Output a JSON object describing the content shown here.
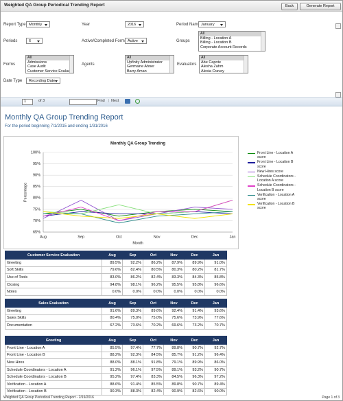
{
  "header": {
    "title": "Weighted QA Group Periodical Trending Report",
    "buttons": [
      "Back",
      "Generate Report"
    ]
  },
  "form": {
    "fields": [
      {
        "label": "Report Type",
        "value": "Monthly"
      },
      {
        "label": "Year",
        "value": "2016"
      },
      {
        "label": "Period Name",
        "value": "January"
      },
      {
        "label": "Periods",
        "value": "6"
      },
      {
        "label": "Active/Completed Forms",
        "value": "Active"
      },
      {
        "label": "Date Type",
        "value": "Recording Date"
      }
    ],
    "lists": [
      {
        "label": "Groups",
        "options": [
          "All",
          "Billing - Location A",
          "Billing - Location B",
          "Corporate Account Records"
        ]
      },
      {
        "label": "Forms",
        "options": [
          "All",
          "Admissions",
          "Case Audit",
          "Customer Service Evaluation"
        ]
      },
      {
        "label": "Agents",
        "options": [
          "All",
          "Upfinity Administrator",
          "Germaine Ahner",
          "Barry Aman"
        ]
      },
      {
        "label": "Evaluators",
        "options": [
          "All",
          "Abe Capote",
          "Alesha Zahm",
          "Alesia Cravey"
        ]
      }
    ]
  },
  "toolbar": {
    "page": "1",
    "of": "of 3",
    "find": "Find",
    "next": "Next"
  },
  "report": {
    "title": "Monthly QA Group Trending Report",
    "subtitle": "For the period beginning 7/1/2015 and ending 1/31/2016"
  },
  "chart_data": {
    "type": "line",
    "title": "Monthly QA Group Trending",
    "x_label": "Month",
    "y_label": "Percentage",
    "categories": [
      "Aug",
      "Sep",
      "Oct",
      "Nov",
      "Dec",
      "Jan"
    ],
    "ylim": [
      65,
      100
    ],
    "yticks": [
      {
        "value": 65,
        "label": "65%"
      },
      {
        "value": 70,
        "label": "70%"
      },
      {
        "value": 75,
        "label": "75%"
      },
      {
        "value": 80,
        "label": "80%"
      },
      {
        "value": 85,
        "label": "85%"
      },
      {
        "value": 90,
        "label": "90%"
      },
      {
        "value": 95,
        "label": "95%"
      },
      {
        "value": 100,
        "label": "100%"
      }
    ],
    "grid": true,
    "series": [
      {
        "name": "Front Line - Location A score",
        "color": "#0a8a0a",
        "values": [
          73,
          75,
          72,
          74,
          75,
          74
        ]
      },
      {
        "name": "Front Line - Location B score",
        "color": "#1c1c9c",
        "values": [
          72,
          74,
          73,
          73,
          74,
          73
        ]
      },
      {
        "name": "New Hires score",
        "color": "#9050d0",
        "values": [
          71,
          79,
          70,
          73,
          76,
          75
        ]
      },
      {
        "name": "Schedule Coordinators - Location A score",
        "color": "#86e07a",
        "values": [
          74,
          73,
          77,
          73,
          74,
          79
        ]
      },
      {
        "name": "Schedule Coordinators - Location B score",
        "color": "#e040c8",
        "values": [
          72,
          76,
          70,
          74,
          74,
          79
        ]
      },
      {
        "name": "Verification - Location A score",
        "color": "#2e8c8c",
        "values": [
          73,
          73,
          69,
          72,
          73,
          74
        ]
      },
      {
        "name": "Verification - Location B score",
        "color": "#f2e200",
        "values": [
          74,
          72,
          71,
          73,
          71,
          73
        ]
      }
    ]
  },
  "tables": [
    {
      "title": "Customer Service Evaluation",
      "columns": [
        "Aug",
        "Sep",
        "Oct",
        "Nov",
        "Dec",
        "Jan"
      ],
      "rows": [
        [
          "Greeting",
          "89.5%",
          "92.2%",
          "86.2%",
          "87.9%",
          "89.9%",
          "91.0%"
        ],
        [
          "Soft Skills",
          "79.6%",
          "82.4%",
          "80.5%",
          "80.3%",
          "80.2%",
          "81.7%"
        ],
        [
          "Use of Tools",
          "83.0%",
          "86.2%",
          "82.4%",
          "83.3%",
          "84.3%",
          "85.8%"
        ],
        [
          "Closing",
          "94.8%",
          "98.1%",
          "96.2%",
          "95.5%",
          "95.8%",
          "96.6%"
        ],
        [
          "Notes",
          "0.0%",
          "0.0%",
          "0.0%",
          "0.0%",
          "0.0%",
          "0.0%"
        ]
      ]
    },
    {
      "title": "Sales Evaluation",
      "columns": [
        "Aug",
        "Sep",
        "Oct",
        "Nov",
        "Dec",
        "Jan"
      ],
      "rows": [
        [
          "Greeting",
          "91.6%",
          "89.3%",
          "89.6%",
          "92.4%",
          "91.4%",
          "93.6%"
        ],
        [
          "Sales Skills",
          "80.4%",
          "75.0%",
          "75.0%",
          "75.6%",
          "73.9%",
          "77.6%"
        ],
        [
          "Documentation",
          "67.2%",
          "73.6%",
          "70.2%",
          "69.6%",
          "73.2%",
          "70.7%"
        ]
      ]
    },
    {
      "title": "Greeting",
      "columns": [
        "Aug",
        "Sep",
        "Oct",
        "Nov",
        "Dec",
        "Jan"
      ],
      "rows": [
        [
          "Front Line - Location A",
          "85.5%",
          "97.4%",
          "77.7%",
          "89.8%",
          "90.7%",
          "92.7%"
        ],
        [
          "Front Line - Location B",
          "88.2%",
          "92.3%",
          "84.5%",
          "85.7%",
          "91.2%",
          "96.4%"
        ],
        [
          "New Hires",
          "88.0%",
          "88.1%",
          "91.8%",
          "79.1%",
          "89.9%",
          "86.0%"
        ],
        [
          "Schedule Coordinators - Location A",
          "91.2%",
          "96.1%",
          "97.5%",
          "89.1%",
          "93.2%",
          "90.7%"
        ],
        [
          "Schedule Coordinators - Location B",
          "95.2%",
          "97.4%",
          "83.3%",
          "84.5%",
          "96.3%",
          "97.2%"
        ],
        [
          "Verification - Location A",
          "88.6%",
          "91.4%",
          "85.5%",
          "89.8%",
          "90.7%",
          "89.4%"
        ],
        [
          "Verification - Location B",
          "90.3%",
          "88.3%",
          "82.4%",
          "90.9%",
          "82.6%",
          "90.0%"
        ]
      ]
    }
  ],
  "footer": {
    "left": "Weighted QA Group Periodical Trending Report - 2/19/2016",
    "right": "Page 1 of 3"
  }
}
